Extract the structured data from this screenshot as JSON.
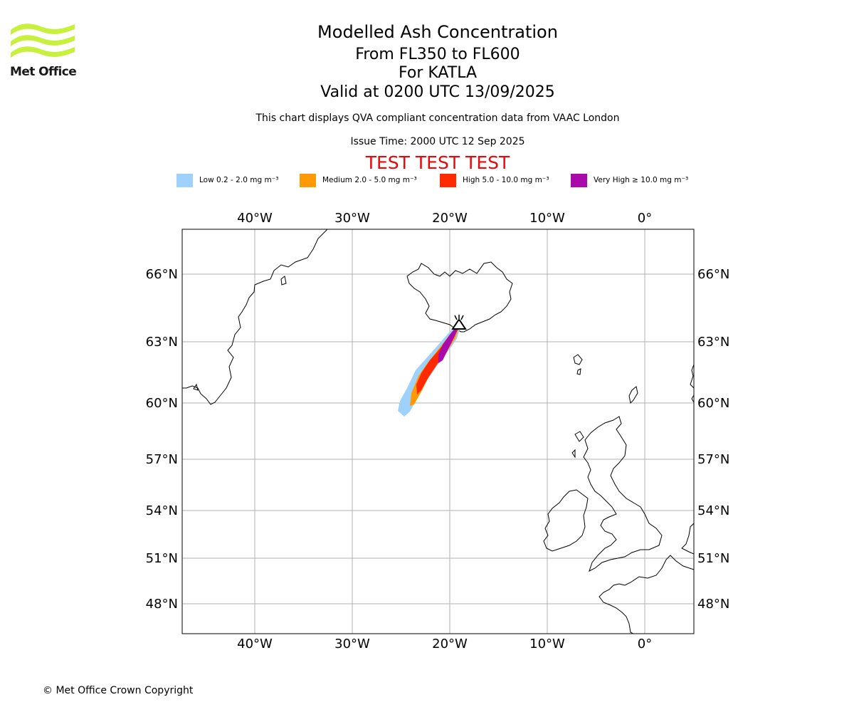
{
  "logo": {
    "text": "Met Office",
    "color": "#c8f03c"
  },
  "title": "Modelled Ash Concentration",
  "subtitle_levels": "From FL350 to FL600",
  "subtitle_volcano": "For KATLA",
  "subtitle_valid": "Valid at 0200 UTC 13/09/2025",
  "description": "This chart displays QVA compliant concentration data from VAAC London",
  "issue_time": "Issue Time: 2000 UTC 12 Sep 2025",
  "test_banner": "TEST TEST TEST",
  "legend": [
    {
      "label": "Low 0.2 - 2.0 mg m⁻³",
      "color": "#9fd2fb"
    },
    {
      "label": "Medium 2.0 - 5.0 mg m⁻³",
      "color": "#ff9a05"
    },
    {
      "label": "High 5.0 - 10.0 mg m⁻³",
      "color": "#ff2a00"
    },
    {
      "label": "Very High ≥ 10.0 mg m⁻³",
      "color": "#aa0aaa"
    }
  ],
  "map": {
    "lon_labels": [
      "40°W",
      "30°W",
      "20°W",
      "10°W",
      "0°"
    ],
    "lat_labels": [
      "66°N",
      "63°N",
      "60°N",
      "57°N",
      "54°N",
      "51°N",
      "48°N"
    ],
    "volcano_marker": "volcano-icon"
  },
  "copyright": "© Met Office Crown Copyright"
}
